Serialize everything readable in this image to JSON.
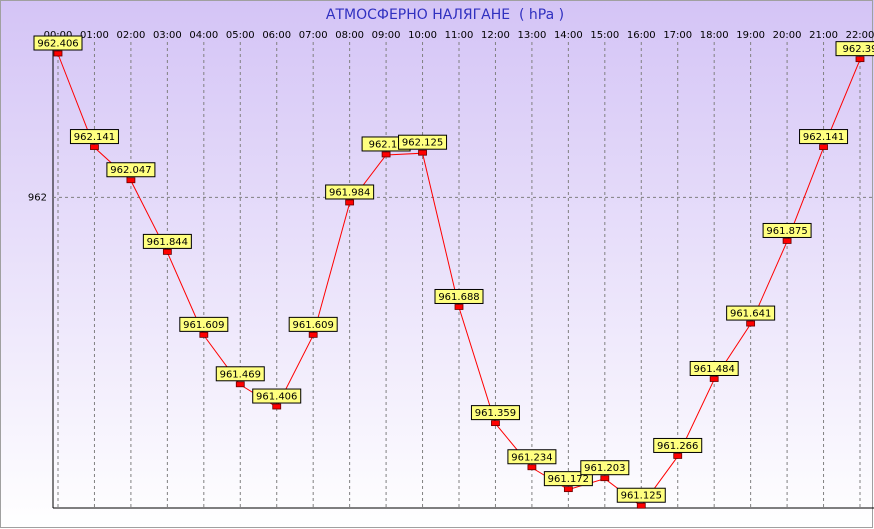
{
  "chart_data": {
    "type": "line",
    "title": "АТМОСФЕРНО НАЛЯГАНЕ  ( hPa )",
    "categories": [
      "00:00",
      "01:00",
      "02:00",
      "03:00",
      "04:00",
      "05:00",
      "06:00",
      "07:00",
      "08:00",
      "09:00",
      "10:00",
      "11:00",
      "12:00",
      "13:00",
      "14:00",
      "15:00",
      "16:00",
      "17:00",
      "18:00",
      "19:00",
      "20:00",
      "21:00",
      "22:00"
    ],
    "series": [
      {
        "color": "#ff0000",
        "values": [
          962.406,
          962.141,
          962.047,
          961.844,
          961.609,
          961.469,
          961.406,
          961.609,
          961.984,
          962.12,
          962.125,
          961.688,
          961.359,
          961.234,
          961.172,
          961.203,
          961.125,
          961.266,
          961.484,
          961.641,
          961.875,
          962.141,
          962.39
        ]
      }
    ],
    "ylim": [
      961.12,
      962.44
    ],
    "yticks": [
      962
    ],
    "grid": true
  }
}
